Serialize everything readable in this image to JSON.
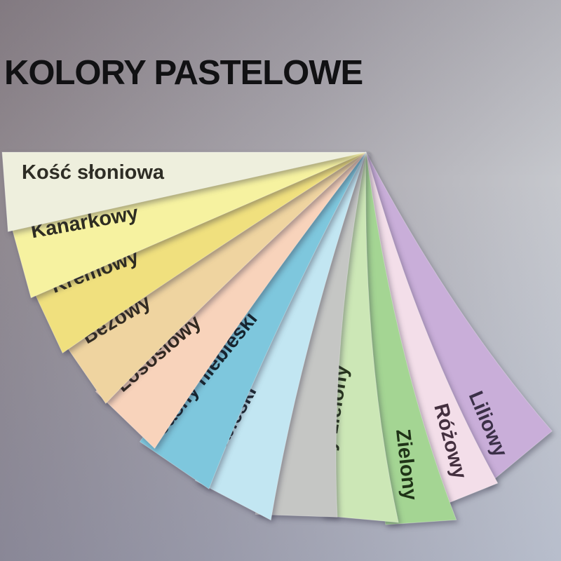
{
  "title": "KOLORY PASTELOWE",
  "background": {
    "top_left": "#8e868c",
    "top_right": "#cdd0d5",
    "bottom_left": "#8a92a6",
    "bottom_right": "#b3b8c0"
  },
  "fan": {
    "strips": [
      {
        "id": "kosc-sloniowa",
        "label": "Kość słoniowa",
        "color": "#eeefdd",
        "label_color": "#2e2d25"
      },
      {
        "id": "kanarkowy",
        "label": "Kanarkowy",
        "color": "#f6f2a0",
        "label_color": "#2e2d22"
      },
      {
        "id": "kremowy",
        "label": "Kremowy",
        "color": "#f0e07e",
        "label_color": "#2e2c20"
      },
      {
        "id": "bezowy",
        "label": "Beżowy",
        "color": "#efd4a0",
        "label_color": "#332c21"
      },
      {
        "id": "lososiowy",
        "label": "Łososiowy",
        "color": "#f8d3bb",
        "label_color": "#33291f"
      },
      {
        "id": "jasny-niebieski",
        "label": "Jasny niebieski",
        "color": "#7ec7dd",
        "label_color": "#15242e"
      },
      {
        "id": "niebieski",
        "label": "Niebieski",
        "color": "#c2e6f2",
        "label_color": "#1c2832"
      },
      {
        "id": "szary",
        "label": "Szary",
        "color": "#c5c6c4",
        "label_color": "#26262a"
      },
      {
        "id": "jasny-zielony",
        "label": "Jasny zielony",
        "color": "#cce7b6",
        "label_color": "#27351d"
      },
      {
        "id": "zielony",
        "label": "Zielony",
        "color": "#a4d593",
        "label_color": "#1f3317"
      },
      {
        "id": "rozowy",
        "label": "Różowy",
        "color": "#f3dee9",
        "label_color": "#44303f"
      },
      {
        "id": "liliowy",
        "label": "Liliowy",
        "color": "#c9aed9",
        "label_color": "#3b3048"
      }
    ]
  }
}
